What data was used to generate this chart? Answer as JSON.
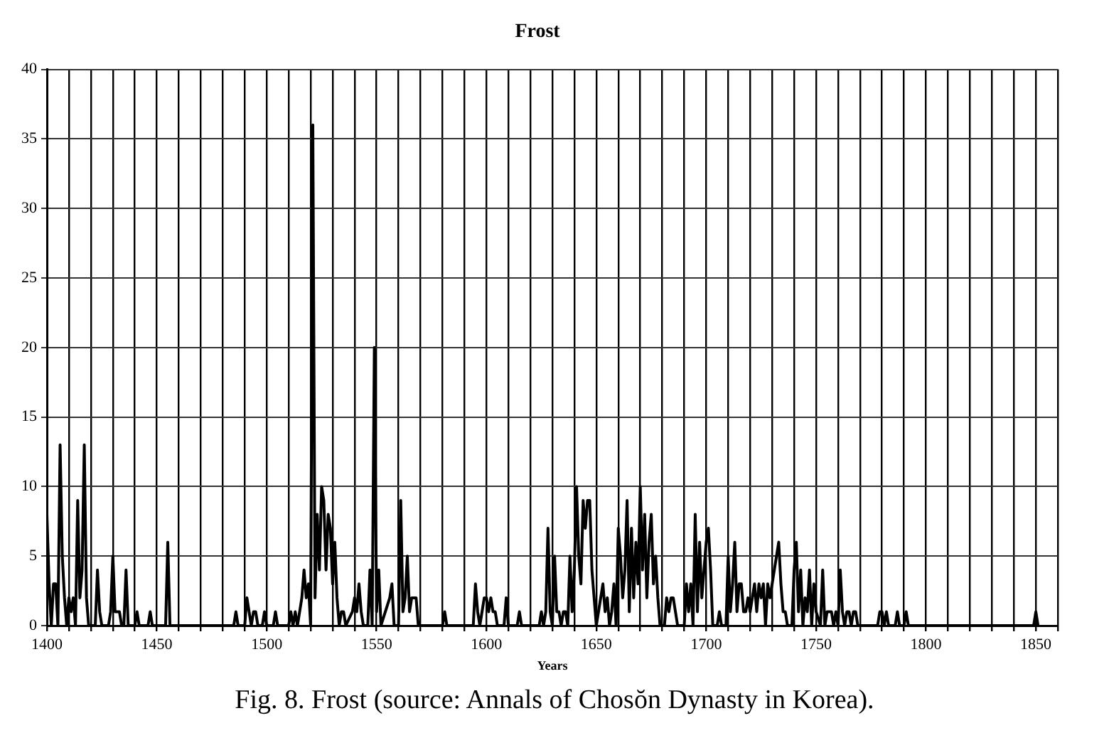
{
  "chart_data": {
    "type": "line",
    "title": "Frost",
    "xlabel": "Years",
    "annotations": [
      "Fig. 8. Frost (source: Annals of Chosŏn Dynasty in Korea)."
    ],
    "xlim": [
      1400,
      1860
    ],
    "xticks": [
      1400,
      {
        "value": 1410,
        "label": null
      },
      {
        "value": 1420,
        "label": null
      },
      {
        "value": 1430,
        "label": null
      },
      {
        "value": 1440,
        "label": null
      },
      1450,
      {
        "value": 1460,
        "label": null
      },
      {
        "value": 1470,
        "label": null
      },
      {
        "value": 1480,
        "label": null
      },
      {
        "value": 1490,
        "label": null
      },
      1500,
      {
        "value": 1510,
        "label": null
      },
      {
        "value": 1520,
        "label": null
      },
      {
        "value": 1530,
        "label": null
      },
      {
        "value": 1540,
        "label": null
      },
      1550,
      {
        "value": 1560,
        "label": null
      },
      {
        "value": 1570,
        "label": null
      },
      {
        "value": 1580,
        "label": null
      },
      {
        "value": 1590,
        "label": null
      },
      1600,
      {
        "value": 1610,
        "label": null
      },
      {
        "value": 1620,
        "label": null
      },
      {
        "value": 1630,
        "label": null
      },
      {
        "value": 1640,
        "label": null
      },
      1650,
      {
        "value": 1660,
        "label": null
      },
      {
        "value": 1670,
        "label": null
      },
      {
        "value": 1680,
        "label": null
      },
      {
        "value": 1690,
        "label": null
      },
      1700,
      {
        "value": 1710,
        "label": null
      },
      {
        "value": 1720,
        "label": null
      },
      {
        "value": 1730,
        "label": null
      },
      {
        "value": 1740,
        "label": null
      },
      1750,
      {
        "value": 1760,
        "label": null
      },
      {
        "value": 1770,
        "label": null
      },
      {
        "value": 1780,
        "label": null
      },
      {
        "value": 1790,
        "label": null
      },
      1800,
      {
        "value": 1810,
        "label": null
      },
      {
        "value": 1820,
        "label": null
      },
      {
        "value": 1830,
        "label": null
      },
      {
        "value": 1840,
        "label": null
      },
      1850,
      {
        "value": 1860,
        "label": null
      }
    ],
    "ylim": [
      0,
      40
    ],
    "yticks": [
      0,
      5,
      10,
      15,
      20,
      25,
      30,
      35,
      40
    ],
    "grid": true,
    "legend": false,
    "marker": "none",
    "line_style": "solid",
    "series": [
      {
        "color": "#000000",
        "x": [
          1400,
          1401,
          1402,
          1403,
          1404,
          1405,
          1406,
          1407,
          1408,
          1409,
          1410,
          1411,
          1412,
          1413,
          1414,
          1415,
          1416,
          1417,
          1418,
          1419,
          1422,
          1423,
          1424,
          1425,
          1428,
          1429,
          1430,
          1431,
          1433,
          1434,
          1435,
          1436,
          1437,
          1440,
          1441,
          1442,
          1446,
          1447,
          1448,
          1454,
          1455,
          1456,
          1485,
          1486,
          1487,
          1490,
          1491,
          1492,
          1493,
          1494,
          1495,
          1496,
          1498,
          1499,
          1500,
          1503,
          1504,
          1505,
          1510,
          1511,
          1512,
          1513,
          1514,
          1515,
          1516,
          1517,
          1518,
          1519,
          1520,
          1521,
          1522,
          1523,
          1524,
          1525,
          1526,
          1527,
          1528,
          1529,
          1530,
          1531,
          1532,
          1533,
          1534,
          1535,
          1536,
          1539,
          1540,
          1541,
          1542,
          1543,
          1544,
          1546,
          1547,
          1548,
          1549,
          1550,
          1551,
          1552,
          1554,
          1556,
          1557,
          1558,
          1560,
          1561,
          1562,
          1563,
          1564,
          1565,
          1566,
          1567,
          1568,
          1569,
          1580,
          1581,
          1582,
          1594,
          1595,
          1596,
          1597,
          1599,
          1600,
          1601,
          1602,
          1603,
          1604,
          1605,
          1608,
          1609,
          1610,
          1614,
          1615,
          1616,
          1624,
          1625,
          1626,
          1627,
          1628,
          1629,
          1630,
          1631,
          1632,
          1633,
          1634,
          1635,
          1636,
          1637,
          1638,
          1639,
          1640,
          1641,
          1642,
          1643,
          1644,
          1645,
          1646,
          1647,
          1648,
          1649,
          1650,
          1652,
          1653,
          1654,
          1655,
          1656,
          1657,
          1658,
          1659,
          1660,
          1661,
          1662,
          1663,
          1664,
          1665,
          1666,
          1667,
          1668,
          1669,
          1670,
          1671,
          1672,
          1673,
          1674,
          1675,
          1676,
          1677,
          1678,
          1679,
          1681,
          1682,
          1683,
          1684,
          1685,
          1686,
          1687,
          1690,
          1691,
          1692,
          1693,
          1694,
          1695,
          1696,
          1697,
          1698,
          1699,
          1700,
          1701,
          1702,
          1703,
          1705,
          1706,
          1707,
          1709,
          1710,
          1711,
          1712,
          1713,
          1714,
          1715,
          1716,
          1717,
          1718,
          1719,
          1720,
          1721,
          1722,
          1723,
          1724,
          1725,
          1726,
          1727,
          1728,
          1729,
          1730,
          1731,
          1732,
          1733,
          1734,
          1735,
          1736,
          1737,
          1739,
          1740,
          1741,
          1742,
          1743,
          1744,
          1745,
          1746,
          1747,
          1748,
          1749,
          1750,
          1752,
          1753,
          1754,
          1755,
          1757,
          1758,
          1759,
          1760,
          1761,
          1762,
          1763,
          1764,
          1765,
          1766,
          1767,
          1768,
          1769,
          1778,
          1779,
          1780,
          1781,
          1782,
          1783,
          1786,
          1787,
          1788,
          1790,
          1791,
          1792,
          1849,
          1850,
          1851
        ],
        "values": [
          8,
          3,
          0,
          3,
          3,
          0,
          13,
          5,
          2,
          0,
          2,
          1,
          2,
          0,
          9,
          2,
          4,
          13,
          2,
          0,
          0,
          4,
          1,
          0,
          0,
          1,
          5,
          1,
          1,
          0,
          0,
          4,
          0,
          0,
          1,
          0,
          0,
          1,
          0,
          0,
          6,
          0,
          0,
          1,
          0,
          0,
          2,
          1,
          0,
          1,
          1,
          0,
          0,
          1,
          0,
          0,
          1,
          0,
          0,
          1,
          0,
          1,
          0,
          1,
          2,
          4,
          2,
          3,
          0,
          36,
          2,
          8,
          4,
          10,
          9,
          4,
          8,
          7,
          3,
          6,
          2,
          0,
          1,
          1,
          0,
          1,
          2,
          1,
          3,
          1,
          0,
          0,
          4,
          0,
          20,
          1,
          4,
          0,
          1,
          2,
          3,
          0,
          0,
          9,
          1,
          2,
          5,
          1,
          2,
          2,
          2,
          0,
          0,
          1,
          0,
          0,
          3,
          1,
          0,
          2,
          2,
          1,
          2,
          1,
          1,
          0,
          0,
          2,
          0,
          0,
          1,
          0,
          0,
          1,
          0,
          1,
          7,
          1,
          0,
          5,
          1,
          1,
          0,
          1,
          1,
          0,
          5,
          1,
          4,
          10,
          5,
          3,
          9,
          7,
          9,
          9,
          4,
          2,
          0,
          2,
          3,
          1,
          2,
          0,
          1,
          3,
          0,
          7,
          5,
          2,
          4,
          9,
          1,
          7,
          2,
          6,
          3,
          10,
          4,
          8,
          2,
          6,
          8,
          3,
          5,
          2,
          0,
          0,
          2,
          1,
          2,
          2,
          1,
          0,
          0,
          3,
          1,
          3,
          0,
          8,
          1,
          6,
          2,
          4,
          6,
          7,
          4,
          0,
          0,
          1,
          0,
          0,
          5,
          1,
          3,
          6,
          1,
          3,
          3,
          1,
          1,
          2,
          1,
          2,
          3,
          1,
          3,
          2,
          3,
          0,
          3,
          2,
          3,
          4,
          5,
          6,
          3,
          1,
          1,
          0,
          0,
          4,
          6,
          1,
          4,
          0,
          2,
          1,
          4,
          0,
          3,
          1,
          0,
          4,
          0,
          1,
          1,
          0,
          1,
          0,
          4,
          1,
          0,
          1,
          1,
          0,
          1,
          1,
          0,
          0,
          1,
          1,
          0,
          1,
          0,
          0,
          1,
          0,
          0,
          1,
          0,
          0,
          1,
          0
        ]
      }
    ]
  }
}
